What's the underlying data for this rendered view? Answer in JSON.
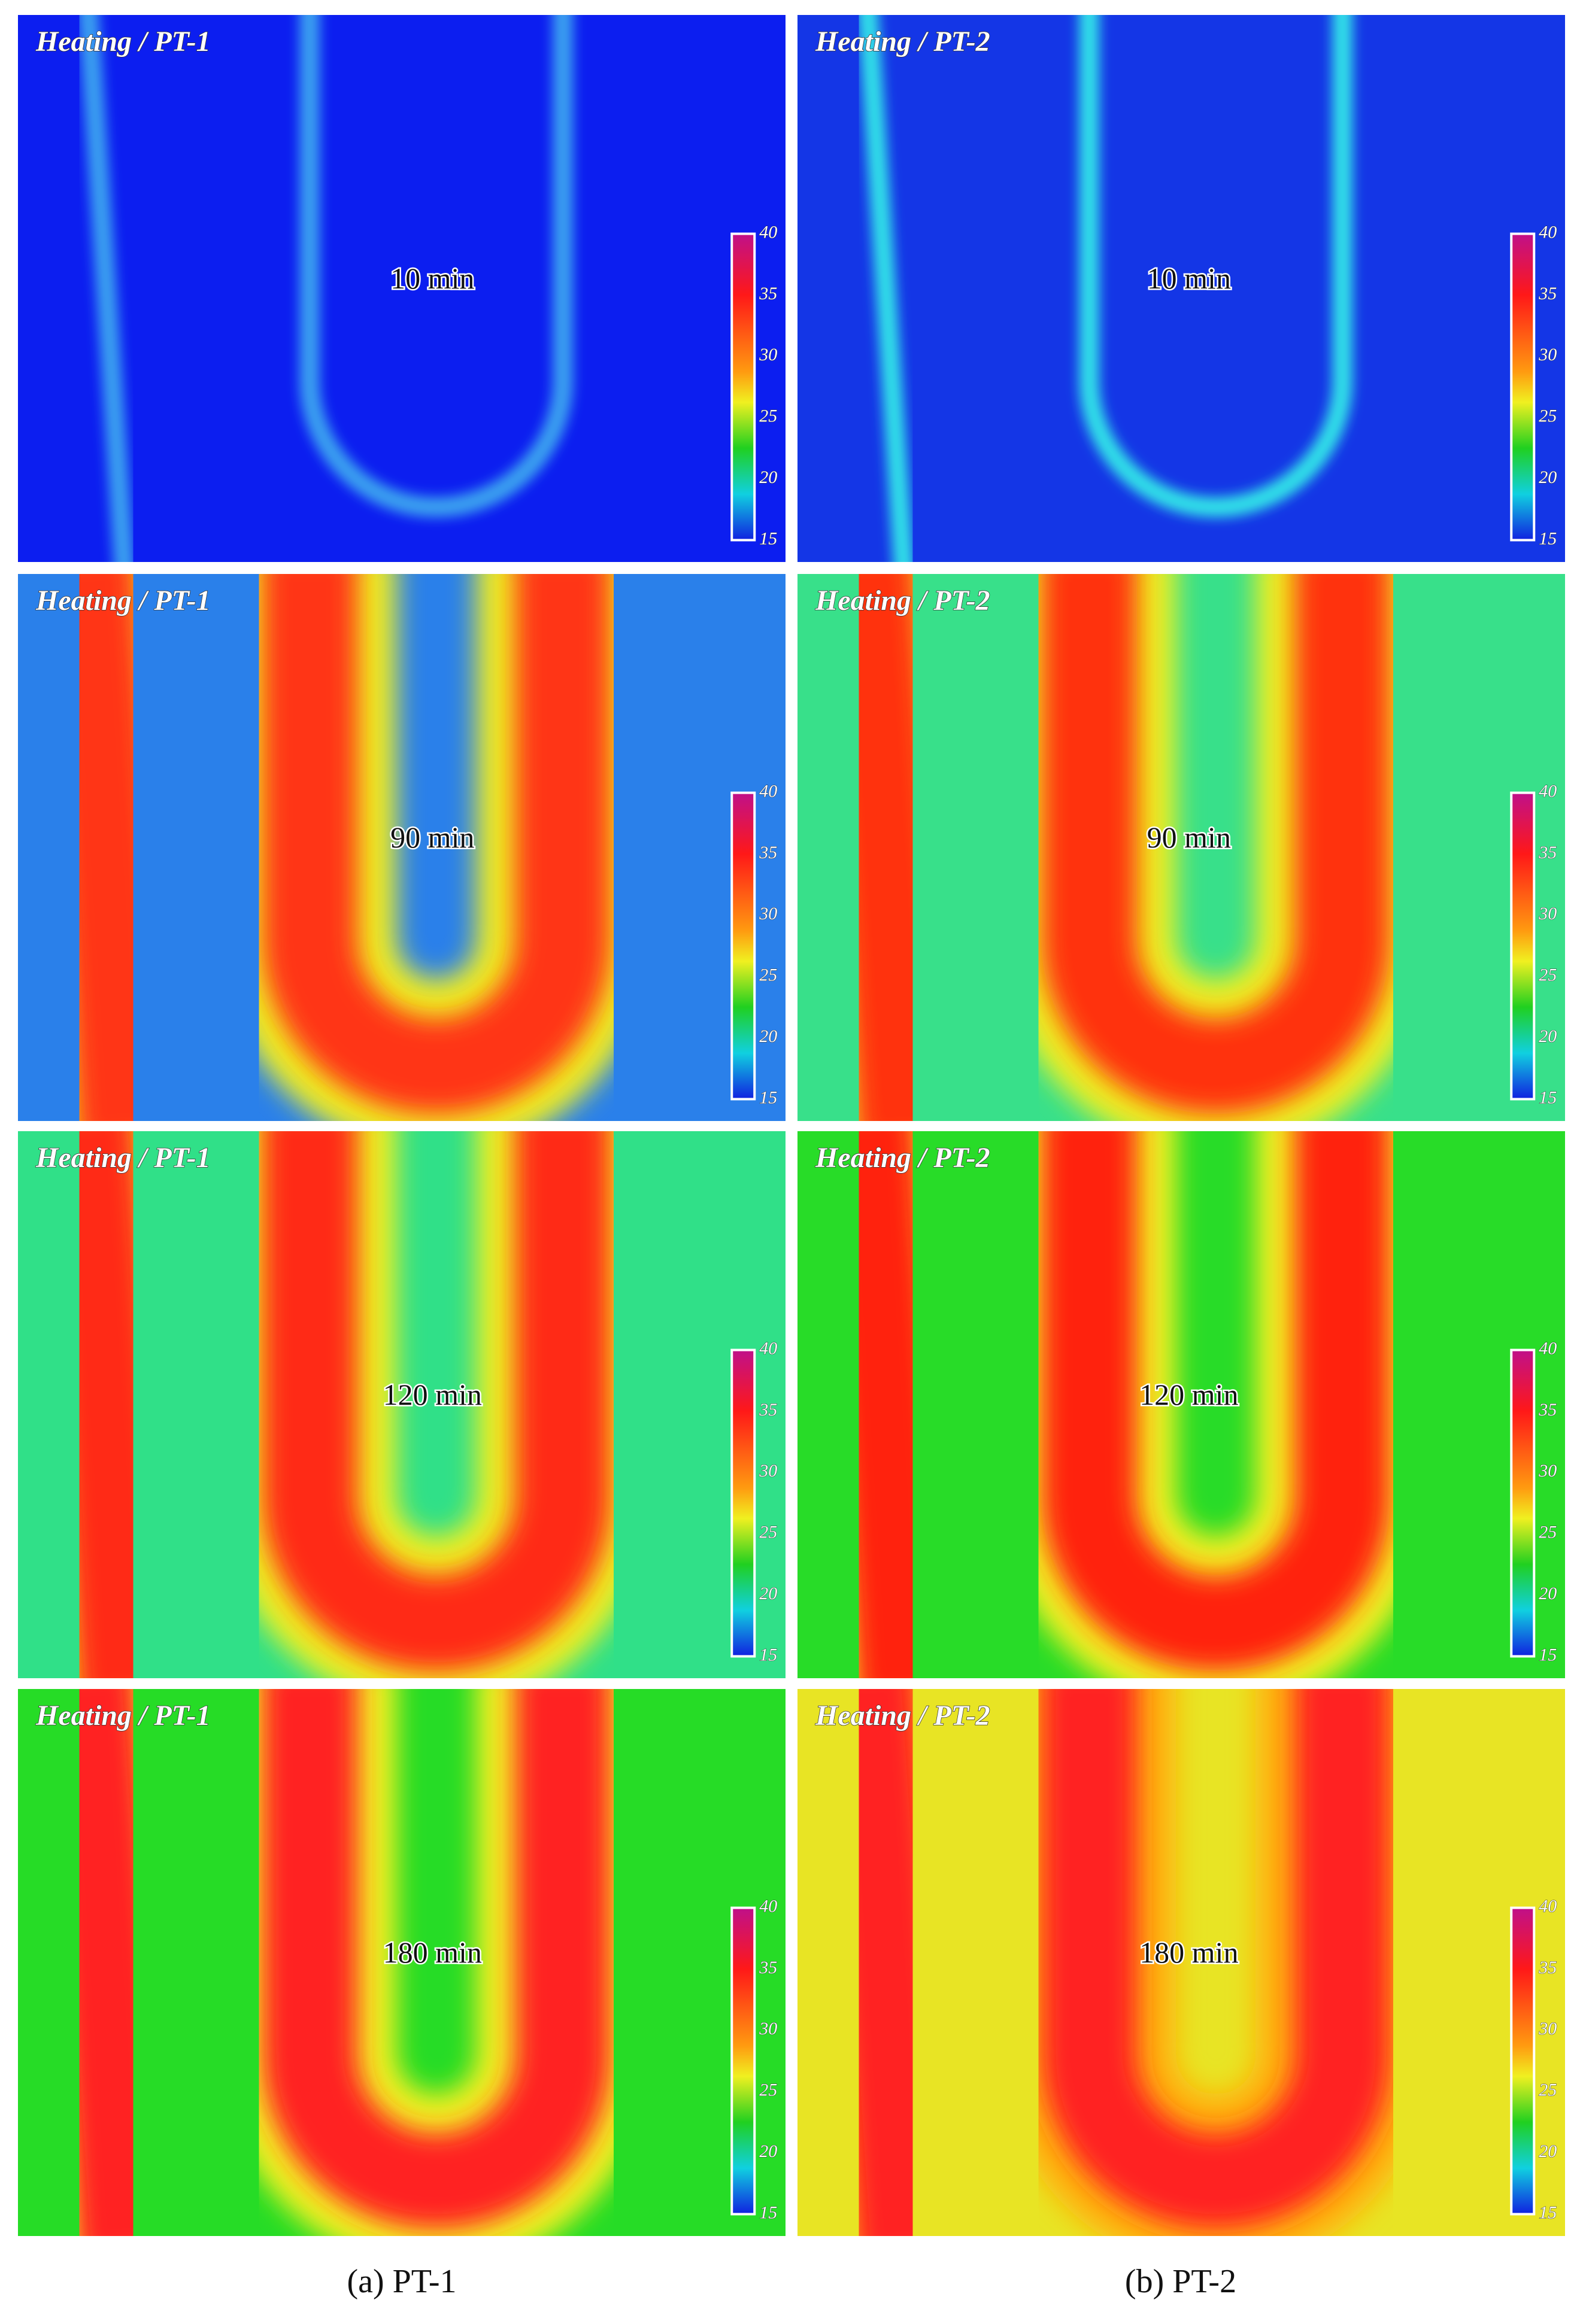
{
  "panels": [
    {
      "label": "Heating / PT-1",
      "time": "10 min",
      "colorbar_ticks": [
        40,
        35,
        30,
        25,
        20,
        15
      ],
      "background": "#0c1ef0",
      "band": "#3aa0f0"
    },
    {
      "label": "Heating / PT-2",
      "time": "10 min",
      "colorbar_ticks": [
        40,
        35,
        30,
        25,
        20,
        15
      ],
      "background": "#1436e6",
      "band": "#30e0e8"
    },
    {
      "label": "Heating / PT-1",
      "time": "90 min",
      "colorbar_ticks": [
        40,
        35,
        30,
        25,
        20,
        15
      ],
      "background": "#2a80ea",
      "edge": "#f0f020",
      "band": "#ff3412"
    },
    {
      "label": "Heating / PT-2",
      "time": "90 min",
      "colorbar_ticks": [
        40,
        35,
        30,
        25,
        20,
        15
      ],
      "background": "#38e08a",
      "edge": "#f0f020",
      "band": "#ff3010"
    },
    {
      "label": "Heating / PT-1",
      "time": "120 min",
      "colorbar_ticks": [
        40,
        35,
        30,
        25,
        20,
        15
      ],
      "background": "#30e088",
      "edge": "#f0f020",
      "band": "#ff2a12"
    },
    {
      "label": "Heating / PT-2",
      "time": "120 min",
      "colorbar_ticks": [
        40,
        35,
        30,
        25,
        20,
        15
      ],
      "background": "#28dc28",
      "edge": "#f4f020",
      "band": "#ff2410"
    },
    {
      "label": "Heating / PT-1",
      "time": "180 min",
      "colorbar_ticks": [
        40,
        35,
        30,
        25,
        20,
        15
      ],
      "background": "#26dc26",
      "edge": "#f4f020",
      "band": "#ff2020"
    },
    {
      "label": "Heating / PT-2",
      "time": "180 min",
      "colorbar_ticks": [
        40,
        35,
        30,
        25,
        20,
        15
      ],
      "background": "#e8e424",
      "edge": "#ffb010",
      "band": "#ff2020"
    }
  ],
  "captions": [
    "(a) PT-1",
    "(b) PT-2"
  ]
}
